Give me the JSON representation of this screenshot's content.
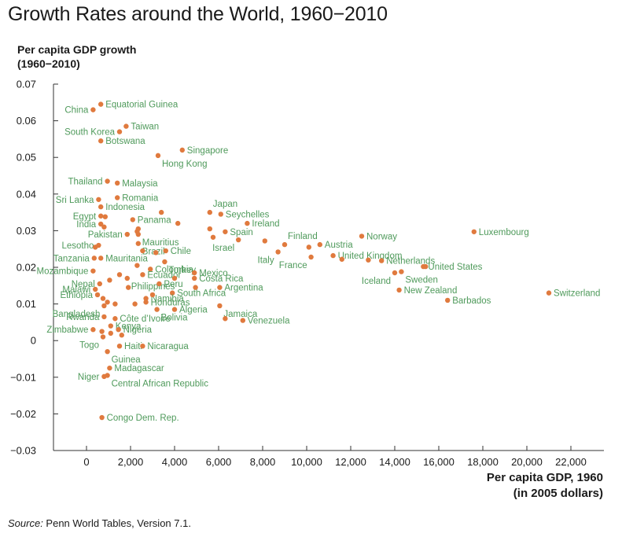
{
  "chart_data": {
    "type": "scatter",
    "title": "Growth Rates around the World, 1960−2010",
    "ylabel_line1": "Per capita GDP growth",
    "ylabel_line2": "(1960−2010)",
    "xlabel_line1": "Per capita GDP, 1960",
    "xlabel_line2": "(in 2005 dollars)",
    "source_prefix": "Source:",
    "source_text": " Penn World Tables, Version 7.1.",
    "xlim": [
      -1500,
      23500
    ],
    "ylim": [
      -0.03,
      0.07
    ],
    "x_ticks": [
      0,
      2000,
      4000,
      6000,
      8000,
      10000,
      12000,
      14000,
      16000,
      18000,
      20000,
      22000
    ],
    "x_tick_labels": [
      "0",
      "2,000",
      "4,000",
      "6,000",
      "8,000",
      "10,000",
      "12,000",
      "14,000",
      "16,000",
      "18,000",
      "20,000",
      "22,000"
    ],
    "y_ticks": [
      -0.03,
      -0.02,
      -0.01,
      0,
      0.01,
      0.02,
      0.03,
      0.04,
      0.05,
      0.06,
      0.07
    ],
    "y_tick_labels": [
      "−0.03",
      "−0.02",
      "−0.01",
      "0",
      "0.01",
      "0.02",
      "0.03",
      "0.04",
      "0.05",
      "0.06",
      "0.07"
    ],
    "grid": false,
    "marker_color": "#e07a3e",
    "label_color": "#4f9a5b",
    "points": [
      {
        "x": 650,
        "y": 0.0645,
        "label": "Equatorial Guinea",
        "pos": "r"
      },
      {
        "x": 300,
        "y": 0.063,
        "label": "China",
        "pos": "l"
      },
      {
        "x": 1800,
        "y": 0.0585,
        "label": "Taiwan",
        "pos": "r"
      },
      {
        "x": 1500,
        "y": 0.057,
        "label": "South Korea",
        "pos": "l"
      },
      {
        "x": 650,
        "y": 0.0545,
        "label": "Botswana",
        "pos": "r"
      },
      {
        "x": 4350,
        "y": 0.052,
        "label": "Singapore",
        "pos": "r"
      },
      {
        "x": 3250,
        "y": 0.0505,
        "label": "Hong Kong",
        "pos": "br"
      },
      {
        "x": 1400,
        "y": 0.043,
        "label": "Malaysia",
        "pos": "r"
      },
      {
        "x": 950,
        "y": 0.0435,
        "label": "Thailand",
        "pos": "l"
      },
      {
        "x": 1400,
        "y": 0.039,
        "label": "Romania",
        "pos": "r"
      },
      {
        "x": 550,
        "y": 0.0385,
        "label": "Sri Lanka",
        "pos": "l"
      },
      {
        "x": 650,
        "y": 0.0365,
        "label": "Indonesia",
        "pos": "r"
      },
      {
        "x": 650,
        "y": 0.034,
        "label": "Egypt",
        "pos": "l"
      },
      {
        "x": 850,
        "y": 0.0338,
        "label": "",
        "pos": "r"
      },
      {
        "x": 2100,
        "y": 0.033,
        "label": "Panama",
        "pos": "r"
      },
      {
        "x": 650,
        "y": 0.0318,
        "label": "India",
        "pos": "l"
      },
      {
        "x": 800,
        "y": 0.031,
        "label": "",
        "pos": "r"
      },
      {
        "x": 2350,
        "y": 0.0305,
        "label": "",
        "pos": "r"
      },
      {
        "x": 2300,
        "y": 0.0298,
        "label": "",
        "pos": "r"
      },
      {
        "x": 3400,
        "y": 0.035,
        "label": "",
        "pos": "r"
      },
      {
        "x": 4150,
        "y": 0.032,
        "label": "",
        "pos": "r"
      },
      {
        "x": 2350,
        "y": 0.029,
        "label": "Mauritius",
        "pos": "br"
      },
      {
        "x": 1850,
        "y": 0.029,
        "label": "Pakistan",
        "pos": "l"
      },
      {
        "x": 2350,
        "y": 0.0265,
        "label": "Brazil",
        "pos": "br"
      },
      {
        "x": 550,
        "y": 0.026,
        "label": "Lesotho",
        "pos": "l"
      },
      {
        "x": 400,
        "y": 0.0255,
        "label": "",
        "pos": "r"
      },
      {
        "x": 3600,
        "y": 0.0245,
        "label": "Chile",
        "pos": "r"
      },
      {
        "x": 3150,
        "y": 0.024,
        "label": "",
        "pos": "r"
      },
      {
        "x": 2550,
        "y": 0.0245,
        "label": "",
        "pos": "r"
      },
      {
        "x": 650,
        "y": 0.0225,
        "label": "Mauritania",
        "pos": "r"
      },
      {
        "x": 350,
        "y": 0.0225,
        "label": "Tanzania",
        "pos": "l"
      },
      {
        "x": 3550,
        "y": 0.0215,
        "label": "Turkey",
        "pos": "br"
      },
      {
        "x": 2300,
        "y": 0.0205,
        "label": "",
        "pos": "r"
      },
      {
        "x": 2900,
        "y": 0.0195,
        "label": "Colombia",
        "pos": "r"
      },
      {
        "x": 4900,
        "y": 0.0185,
        "label": "Mexico",
        "pos": "r"
      },
      {
        "x": 300,
        "y": 0.019,
        "label": "Mozambique",
        "pos": "l"
      },
      {
        "x": 2550,
        "y": 0.018,
        "label": "Ecuador",
        "pos": "r"
      },
      {
        "x": 4000,
        "y": 0.017,
        "label": "",
        "pos": "r"
      },
      {
        "x": 4900,
        "y": 0.017,
        "label": "Costa Rica",
        "pos": "r"
      },
      {
        "x": 1500,
        "y": 0.018,
        "label": "",
        "pos": "r"
      },
      {
        "x": 1850,
        "y": 0.017,
        "label": "Philippines",
        "pos": "br"
      },
      {
        "x": 3300,
        "y": 0.0155,
        "label": "Peru",
        "pos": "r"
      },
      {
        "x": 1050,
        "y": 0.0165,
        "label": "",
        "pos": "r"
      },
      {
        "x": 600,
        "y": 0.0155,
        "label": "Nepal",
        "pos": "l"
      },
      {
        "x": 1900,
        "y": 0.0145,
        "label": "",
        "pos": "r"
      },
      {
        "x": 3900,
        "y": 0.013,
        "label": "South Africa",
        "pos": "r"
      },
      {
        "x": 4950,
        "y": 0.0145,
        "label": "",
        "pos": "r"
      },
      {
        "x": 6050,
        "y": 0.0145,
        "label": "Argentina",
        "pos": "r"
      },
      {
        "x": 400,
        "y": 0.014,
        "label": "Malawi",
        "pos": "l"
      },
      {
        "x": 500,
        "y": 0.0125,
        "label": "Ethiopia",
        "pos": "l"
      },
      {
        "x": 750,
        "y": 0.0115,
        "label": "",
        "pos": "r"
      },
      {
        "x": 2700,
        "y": 0.0115,
        "label": "Namibia",
        "pos": "r"
      },
      {
        "x": 3000,
        "y": 0.0125,
        "label": "",
        "pos": "r"
      },
      {
        "x": 2700,
        "y": 0.0105,
        "label": "Honduras",
        "pos": "r"
      },
      {
        "x": 2200,
        "y": 0.01,
        "label": "",
        "pos": "r"
      },
      {
        "x": 800,
        "y": 0.0095,
        "label": "Bangladesh",
        "pos": "bl"
      },
      {
        "x": 950,
        "y": 0.0105,
        "label": "",
        "pos": "r"
      },
      {
        "x": 1300,
        "y": 0.01,
        "label": "",
        "pos": "r"
      },
      {
        "x": 4000,
        "y": 0.0085,
        "label": "Algeria",
        "pos": "r"
      },
      {
        "x": 3200,
        "y": 0.0085,
        "label": "Bolivia",
        "pos": "br"
      },
      {
        "x": 6050,
        "y": 0.0095,
        "label": "Jamaica",
        "pos": "br"
      },
      {
        "x": 6300,
        "y": 0.006,
        "label": "",
        "pos": "r"
      },
      {
        "x": 7100,
        "y": 0.0055,
        "label": "Venezuela",
        "pos": "r"
      },
      {
        "x": 800,
        "y": 0.0065,
        "label": "Rwanda",
        "pos": "l"
      },
      {
        "x": 1300,
        "y": 0.006,
        "label": "Côte d’Ivoire",
        "pos": "r"
      },
      {
        "x": 1100,
        "y": 0.004,
        "label": "Kenya",
        "pos": "r"
      },
      {
        "x": 1450,
        "y": 0.003,
        "label": "Nigeria",
        "pos": "r"
      },
      {
        "x": 300,
        "y": 0.003,
        "label": "Zimbabwe",
        "pos": "l"
      },
      {
        "x": 700,
        "y": 0.0025,
        "label": "",
        "pos": "r"
      },
      {
        "x": 1600,
        "y": 0.0015,
        "label": "",
        "pos": "r"
      },
      {
        "x": 1100,
        "y": 0.002,
        "label": "",
        "pos": "r"
      },
      {
        "x": 750,
        "y": 0.001,
        "label": "Togo",
        "pos": "bl"
      },
      {
        "x": 1500,
        "y": -0.0015,
        "label": "Haiti",
        "pos": "r"
      },
      {
        "x": 2550,
        "y": -0.0015,
        "label": "Nicaragua",
        "pos": "r"
      },
      {
        "x": 950,
        "y": -0.003,
        "label": "Guinea",
        "pos": "br"
      },
      {
        "x": 1050,
        "y": -0.0075,
        "label": "Madagascar",
        "pos": "r"
      },
      {
        "x": 800,
        "y": -0.0098,
        "label": "Niger",
        "pos": "l"
      },
      {
        "x": 950,
        "y": -0.0095,
        "label": "Central African Republic",
        "pos": "br"
      },
      {
        "x": 700,
        "y": -0.021,
        "label": "Congo Dem. Rep.",
        "pos": "r"
      },
      {
        "x": 5600,
        "y": 0.035,
        "label": "Japan",
        "pos": "tr"
      },
      {
        "x": 6100,
        "y": 0.0345,
        "label": "Seychelles",
        "pos": "r"
      },
      {
        "x": 7300,
        "y": 0.032,
        "label": "Ireland",
        "pos": "r"
      },
      {
        "x": 6300,
        "y": 0.0297,
        "label": "Spain",
        "pos": "r"
      },
      {
        "x": 5600,
        "y": 0.0305,
        "label": "",
        "pos": "r"
      },
      {
        "x": 5750,
        "y": 0.0282,
        "label": "",
        "pos": "r"
      },
      {
        "x": 6900,
        "y": 0.0275,
        "label": "Israel",
        "pos": "bl"
      },
      {
        "x": 8100,
        "y": 0.0272,
        "label": "",
        "pos": "r"
      },
      {
        "x": 8700,
        "y": 0.0242,
        "label": "Italy",
        "pos": "bl"
      },
      {
        "x": 9000,
        "y": 0.0262,
        "label": "Finland",
        "pos": "tr"
      },
      {
        "x": 10100,
        "y": 0.0255,
        "label": "",
        "pos": "r"
      },
      {
        "x": 10600,
        "y": 0.0262,
        "label": "Austria",
        "pos": "r"
      },
      {
        "x": 10200,
        "y": 0.0228,
        "label": "France",
        "pos": "bl"
      },
      {
        "x": 11200,
        "y": 0.0232,
        "label": "United Kingdom",
        "pos": "r"
      },
      {
        "x": 11600,
        "y": 0.0222,
        "label": "",
        "pos": "r"
      },
      {
        "x": 12500,
        "y": 0.0285,
        "label": "Norway",
        "pos": "r"
      },
      {
        "x": 12800,
        "y": 0.022,
        "label": "",
        "pos": "r"
      },
      {
        "x": 13400,
        "y": 0.0218,
        "label": "Netherlands",
        "pos": "r"
      },
      {
        "x": 14000,
        "y": 0.0185,
        "label": "Iceland",
        "pos": "bl"
      },
      {
        "x": 14300,
        "y": 0.0188,
        "label": "Sweden",
        "pos": "br"
      },
      {
        "x": 15300,
        "y": 0.0202,
        "label": "United States",
        "pos": "r"
      },
      {
        "x": 15400,
        "y": 0.0202,
        "label": "",
        "pos": "r"
      },
      {
        "x": 14200,
        "y": 0.0138,
        "label": "New Zealand",
        "pos": "r"
      },
      {
        "x": 16400,
        "y": 0.011,
        "label": "Barbados",
        "pos": "r"
      },
      {
        "x": 17600,
        "y": 0.0297,
        "label": "Luxembourg",
        "pos": "r"
      },
      {
        "x": 21000,
        "y": 0.013,
        "label": "Switzerland",
        "pos": "r"
      }
    ]
  }
}
